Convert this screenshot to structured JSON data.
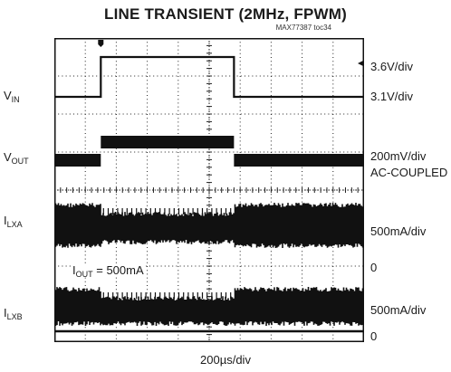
{
  "chart_data": {
    "type": "line",
    "title": "LINE TRANSIENT (2MHz, FPWM)",
    "figure_id": "MAX77387 toc34",
    "xlabel": "200µs/div",
    "x_divisions": 10,
    "y_divisions": 8,
    "grid": true,
    "step": {
      "rise_div": 1.5,
      "fall_div": 5.8
    },
    "channels": [
      {
        "name": "V",
        "sub": "IN",
        "scale": "3.6V/div",
        "ref_label": "3.1V/div",
        "low_level": "3.1V",
        "high_level": "3.6V"
      },
      {
        "name": "V",
        "sub": "OUT",
        "scale": "200mV/div",
        "coupling": "AC-COUPLED"
      },
      {
        "name": "I",
        "sub": "LXA",
        "scale": "500mA/div",
        "zero": "0"
      },
      {
        "name": "I",
        "sub": "LXB",
        "scale": "500mA/div",
        "zero": "0"
      }
    ],
    "annotation": {
      "name": "I",
      "sub": "OUT",
      "value": " = 500mA"
    }
  }
}
